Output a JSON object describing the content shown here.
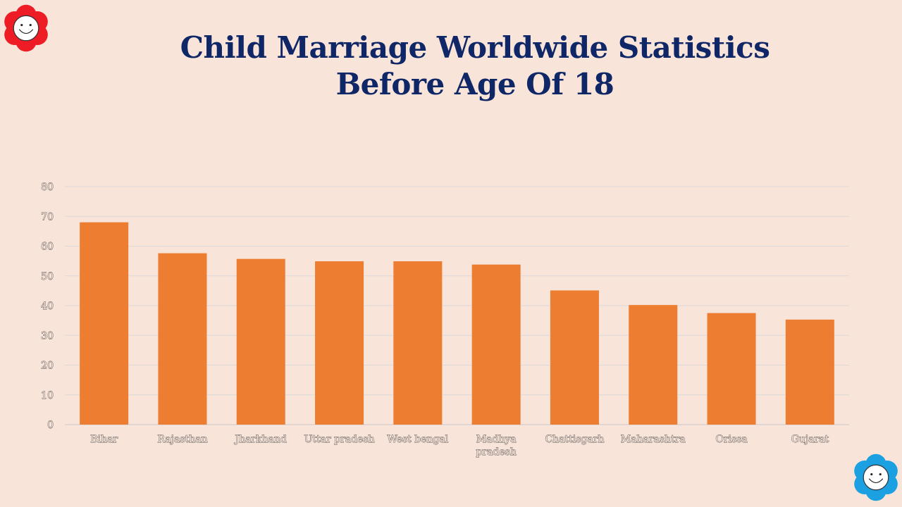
{
  "slide": {
    "title_line1": "Child Marriage Worldwide Statistics",
    "title_line2": "Before Age Of 18"
  },
  "decorations": [
    {
      "name": "smiley-flower-icon",
      "color": "#ee1c25"
    },
    {
      "name": "smiley-flower-icon",
      "color": "#1ba1e2"
    }
  ],
  "chart_data": {
    "type": "bar",
    "categories": [
      "Bihar",
      "Rajasthan",
      "Jharkhand",
      "Uttar pradesh",
      "West bengal",
      "Madhya pradesh",
      "Chattisgarh",
      "Maharashtra",
      "Orissa",
      "Gujarat"
    ],
    "category_labels": [
      [
        "Bihar"
      ],
      [
        "Rajasthan"
      ],
      [
        "Jharkhand"
      ],
      [
        "Uttar pradesh"
      ],
      [
        "West bengal"
      ],
      [
        "Madhya",
        "pradesh"
      ],
      [
        "Chattisgarh"
      ],
      [
        "Maharashtra"
      ],
      [
        "Orissa"
      ],
      [
        "Gujarat"
      ]
    ],
    "values": [
      68,
      57.6,
      55.7,
      54.9,
      54.9,
      53.8,
      45.1,
      40.2,
      37.5,
      35.3
    ],
    "ylim": [
      0,
      80
    ],
    "yticks": [
      "0",
      "10",
      "20",
      "30",
      "40",
      "50",
      "60",
      "70",
      "80"
    ],
    "bar_color": "#ed7d31",
    "grid": true,
    "legend": "none",
    "title": "Child Marriage Worldwide Statistics Before Age Of 18",
    "xlabel": "",
    "ylabel": ""
  }
}
